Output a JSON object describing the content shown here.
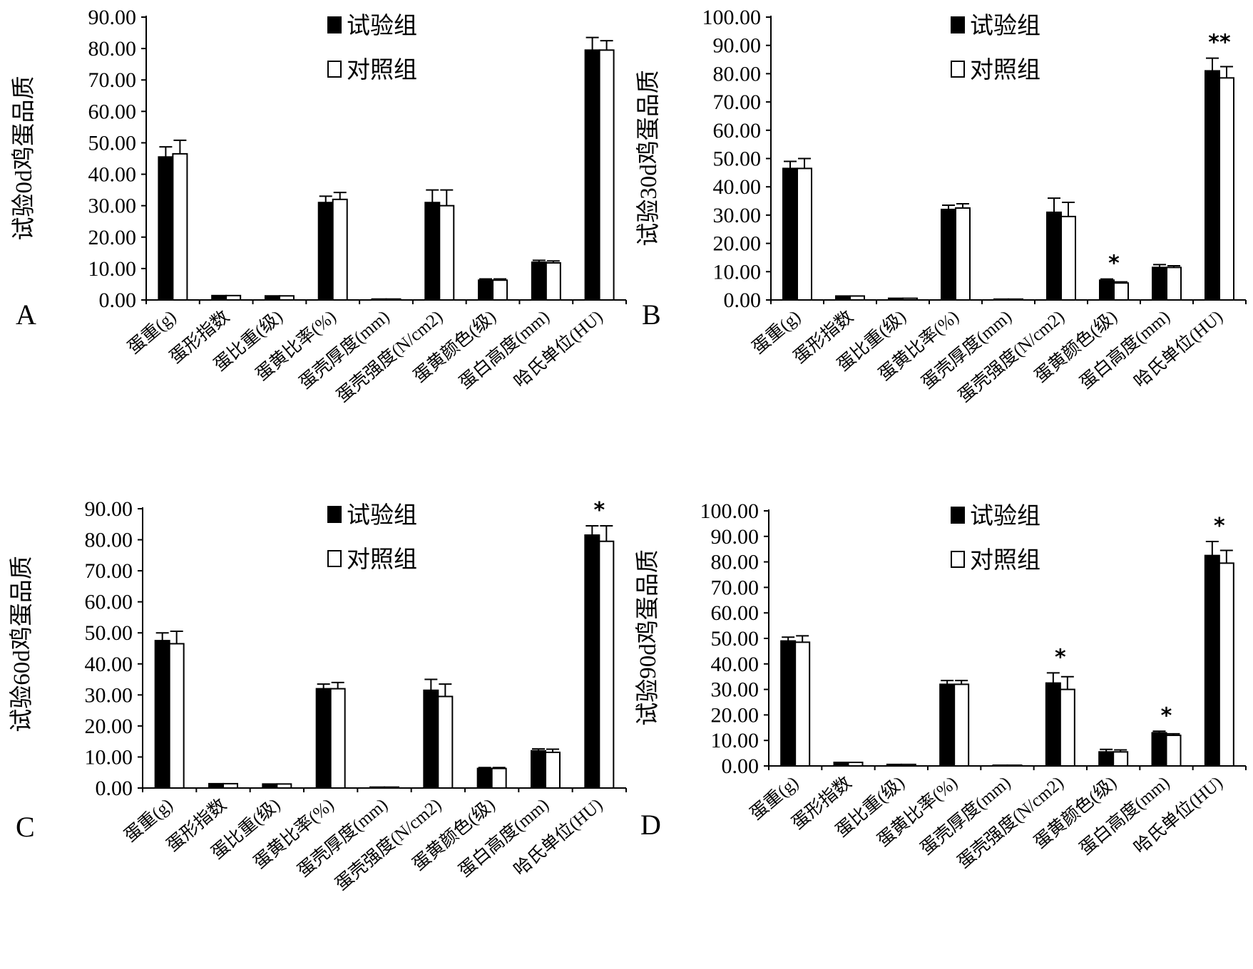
{
  "categories": [
    "蛋重(g)",
    "蛋形指数",
    "蛋比重(级)",
    "蛋黄比率(%)",
    "蛋壳厚度(mm)",
    "蛋壳强度(N/cm2)",
    "蛋黄颜色(级)",
    "蛋白高度(mm)",
    "哈氏单位(HU)"
  ],
  "legend": {
    "trial": "试验组",
    "control": "对照组"
  },
  "colors": {
    "trial": "#000000",
    "control": "#ffffff",
    "axis": "#000000"
  },
  "chart_data": [
    {
      "panel": "A",
      "type": "bar",
      "ylabel": "试验0d鸡蛋品质",
      "ylim": [
        0,
        90
      ],
      "yticks": [
        "0.00",
        "10.00",
        "20.00",
        "30.00",
        "40.00",
        "50.00",
        "60.00",
        "70.00",
        "80.00",
        "90.00"
      ],
      "categories": [
        "蛋重(g)",
        "蛋形指数",
        "蛋比重(级)",
        "蛋黄比率(%)",
        "蛋壳厚度(mm)",
        "蛋壳强度(N/cm2)",
        "蛋黄颜色(级)",
        "蛋白高度(mm)",
        "哈氏单位(HU)"
      ],
      "series": [
        {
          "name": "试验组",
          "values": [
            45.5,
            1.4,
            1.3,
            31.0,
            0.3,
            31.0,
            6.3,
            12.0,
            79.5
          ],
          "errors": [
            3.2,
            0.1,
            0.1,
            2.0,
            0.05,
            4.0,
            0.4,
            0.6,
            4.0
          ]
        },
        {
          "name": "对照组",
          "values": [
            46.5,
            1.4,
            1.3,
            32.0,
            0.3,
            30.0,
            6.3,
            11.8,
            79.5
          ],
          "errors": [
            4.3,
            0.1,
            0.1,
            2.2,
            0.05,
            5.0,
            0.4,
            0.6,
            3.0
          ]
        }
      ],
      "significance": [
        "",
        "",
        "",
        "",
        "",
        "",
        "",
        "",
        ""
      ],
      "legend_position": "top-right",
      "grid": false
    },
    {
      "panel": "B",
      "type": "bar",
      "ylabel": "试验30d鸡蛋品质",
      "ylim": [
        0,
        100
      ],
      "yticks": [
        "0.00",
        "10.00",
        "20.00",
        "30.00",
        "40.00",
        "50.00",
        "60.00",
        "70.00",
        "80.00",
        "90.00",
        "100.00"
      ],
      "categories": [
        "蛋重(g)",
        "蛋形指数",
        "蛋比重(级)",
        "蛋黄比率(%)",
        "蛋壳厚度(mm)",
        "蛋壳强度(N/cm2)",
        "蛋黄颜色(级)",
        "蛋白高度(mm)",
        "哈氏单位(HU)"
      ],
      "series": [
        {
          "name": "试验组",
          "values": [
            46.5,
            1.4,
            0.6,
            32.0,
            0.3,
            31.0,
            7.0,
            11.5,
            81.0
          ],
          "errors": [
            2.5,
            0.1,
            0.05,
            1.5,
            0.05,
            5.0,
            0.4,
            1.0,
            4.5
          ]
        },
        {
          "name": "对照组",
          "values": [
            46.5,
            1.4,
            0.6,
            32.5,
            0.3,
            29.5,
            6.0,
            11.5,
            78.5
          ],
          "errors": [
            3.5,
            0.1,
            0.05,
            1.5,
            0.05,
            5.0,
            0.4,
            0.6,
            4.0
          ]
        }
      ],
      "significance": [
        "",
        "",
        "",
        "",
        "",
        "",
        "*",
        "",
        "**"
      ],
      "legend_position": "top-right",
      "grid": false
    },
    {
      "panel": "C",
      "type": "bar",
      "ylabel": "试验60d鸡蛋品质",
      "ylim": [
        0,
        90
      ],
      "yticks": [
        "0.00",
        "10.00",
        "20.00",
        "30.00",
        "40.00",
        "50.00",
        "60.00",
        "70.00",
        "80.00",
        "90.00"
      ],
      "categories": [
        "蛋重(g)",
        "蛋形指数",
        "蛋比重(级)",
        "蛋黄比率(%)",
        "蛋壳厚度(mm)",
        "蛋壳强度(N/cm2)",
        "蛋黄颜色(级)",
        "蛋白高度(mm)",
        "哈氏单位(HU)"
      ],
      "series": [
        {
          "name": "试验组",
          "values": [
            47.5,
            1.4,
            1.3,
            32.0,
            0.3,
            31.5,
            6.3,
            12.0,
            81.5
          ],
          "errors": [
            2.5,
            0.1,
            0.1,
            1.5,
            0.05,
            3.5,
            0.3,
            0.6,
            3.0
          ]
        },
        {
          "name": "对照组",
          "values": [
            46.5,
            1.4,
            1.3,
            32.0,
            0.3,
            29.5,
            6.3,
            11.5,
            79.5
          ],
          "errors": [
            4.0,
            0.1,
            0.1,
            2.0,
            0.05,
            4.0,
            0.3,
            1.0,
            5.0
          ]
        }
      ],
      "significance": [
        "",
        "",
        "",
        "",
        "",
        "",
        "",
        "",
        "*"
      ],
      "legend_position": "top-right",
      "grid": false
    },
    {
      "panel": "D",
      "type": "bar",
      "ylabel": "试验90d鸡蛋品质",
      "ylim": [
        0,
        100
      ],
      "yticks": [
        "0.00",
        "10.00",
        "20.00",
        "30.00",
        "40.00",
        "50.00",
        "60.00",
        "70.00",
        "80.00",
        "90.00",
        "100.00"
      ],
      "categories": [
        "蛋重(g)",
        "蛋形指数",
        "蛋比重(级)",
        "蛋黄比率(%)",
        "蛋壳厚度(mm)",
        "蛋壳强度(N/cm2)",
        "蛋黄颜色(级)",
        "蛋白高度(mm)",
        "哈氏单位(HU)"
      ],
      "series": [
        {
          "name": "试验组",
          "values": [
            49.0,
            1.4,
            0.6,
            32.0,
            0.3,
            32.5,
            5.5,
            13.0,
            82.5
          ],
          "errors": [
            1.5,
            0.1,
            0.05,
            1.5,
            0.05,
            4.0,
            1.0,
            0.6,
            5.5
          ]
        },
        {
          "name": "对照组",
          "values": [
            48.5,
            1.4,
            0.6,
            32.0,
            0.3,
            30.0,
            5.5,
            12.0,
            79.5
          ],
          "errors": [
            2.5,
            0.1,
            0.05,
            1.5,
            0.05,
            5.0,
            0.8,
            0.6,
            5.0
          ]
        }
      ],
      "significance": [
        "",
        "",
        "",
        "",
        "",
        "*",
        "",
        "*",
        "*"
      ],
      "legend_position": "top-right",
      "grid": false
    }
  ]
}
